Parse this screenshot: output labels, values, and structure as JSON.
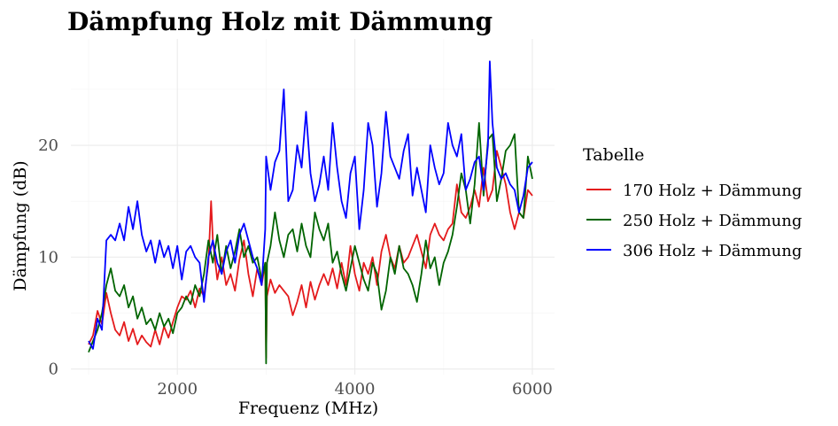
{
  "chart_data": {
    "type": "line",
    "title": "Dämpfung Holz mit Dämmung",
    "xlabel": "Frequenz (MHz)",
    "ylabel": "Dämpfung (dB)",
    "xlim": [
      800,
      6250
    ],
    "ylim": [
      -0.5,
      29.5
    ],
    "x_ticks": [
      2000,
      4000,
      6000
    ],
    "y_ticks": [
      0,
      10,
      20
    ],
    "x_tick_labels": [
      "2000",
      "4000",
      "6000"
    ],
    "y_tick_labels": [
      "0",
      "10",
      "20"
    ],
    "grid": true,
    "legend": {
      "title": "Tabelle",
      "position": "right"
    },
    "series": [
      {
        "name": "170 Holz + Dämmung",
        "color": "#e41a1c",
        "points": [
          [
            1000,
            2.2
          ],
          [
            1050,
            3.0
          ],
          [
            1100,
            5.2
          ],
          [
            1150,
            4.0
          ],
          [
            1200,
            6.8
          ],
          [
            1250,
            5.0
          ],
          [
            1300,
            3.5
          ],
          [
            1350,
            3.0
          ],
          [
            1400,
            4.2
          ],
          [
            1450,
            2.5
          ],
          [
            1500,
            3.6
          ],
          [
            1550,
            2.2
          ],
          [
            1600,
            3.0
          ],
          [
            1650,
            2.4
          ],
          [
            1700,
            2.0
          ],
          [
            1750,
            3.5
          ],
          [
            1800,
            2.2
          ],
          [
            1850,
            3.8
          ],
          [
            1900,
            2.8
          ],
          [
            1950,
            4.2
          ],
          [
            2000,
            5.5
          ],
          [
            2050,
            6.5
          ],
          [
            2100,
            6.2
          ],
          [
            2150,
            7.0
          ],
          [
            2200,
            5.5
          ],
          [
            2250,
            7.2
          ],
          [
            2300,
            6.5
          ],
          [
            2350,
            9.5
          ],
          [
            2380,
            15.0
          ],
          [
            2400,
            11.5
          ],
          [
            2450,
            8.0
          ],
          [
            2500,
            10.0
          ],
          [
            2550,
            7.5
          ],
          [
            2600,
            8.5
          ],
          [
            2650,
            7.0
          ],
          [
            2700,
            9.8
          ],
          [
            2750,
            11.5
          ],
          [
            2800,
            8.5
          ],
          [
            2850,
            6.5
          ],
          [
            2900,
            9.0
          ],
          [
            2950,
            7.5
          ],
          [
            2990,
            9.5
          ],
          [
            3000,
            1.0
          ],
          [
            3010,
            6.5
          ],
          [
            3050,
            8.0
          ],
          [
            3100,
            6.8
          ],
          [
            3150,
            7.5
          ],
          [
            3200,
            7.0
          ],
          [
            3250,
            6.5
          ],
          [
            3300,
            4.8
          ],
          [
            3350,
            6.0
          ],
          [
            3400,
            7.5
          ],
          [
            3450,
            5.5
          ],
          [
            3500,
            7.8
          ],
          [
            3550,
            6.2
          ],
          [
            3600,
            7.5
          ],
          [
            3650,
            8.5
          ],
          [
            3700,
            7.5
          ],
          [
            3750,
            9.0
          ],
          [
            3800,
            7.2
          ],
          [
            3850,
            9.5
          ],
          [
            3900,
            7.5
          ],
          [
            3950,
            11.0
          ],
          [
            4000,
            8.5
          ],
          [
            4050,
            7.0
          ],
          [
            4100,
            9.5
          ],
          [
            4150,
            8.5
          ],
          [
            4200,
            10.0
          ],
          [
            4250,
            7.5
          ],
          [
            4300,
            10.5
          ],
          [
            4350,
            12.0
          ],
          [
            4400,
            10.0
          ],
          [
            4450,
            9.0
          ],
          [
            4500,
            11.0
          ],
          [
            4550,
            9.5
          ],
          [
            4600,
            10.0
          ],
          [
            4650,
            11.0
          ],
          [
            4700,
            12.0
          ],
          [
            4750,
            10.5
          ],
          [
            4800,
            9.0
          ],
          [
            4850,
            12.0
          ],
          [
            4900,
            13.0
          ],
          [
            4950,
            12.0
          ],
          [
            5000,
            11.5
          ],
          [
            5050,
            12.5
          ],
          [
            5100,
            13.0
          ],
          [
            5150,
            16.5
          ],
          [
            5200,
            14.0
          ],
          [
            5250,
            13.5
          ],
          [
            5300,
            14.5
          ],
          [
            5350,
            16.0
          ],
          [
            5400,
            14.5
          ],
          [
            5450,
            18.0
          ],
          [
            5500,
            15.0
          ],
          [
            5550,
            16.0
          ],
          [
            5600,
            19.5
          ],
          [
            5650,
            18.0
          ],
          [
            5700,
            16.5
          ],
          [
            5750,
            14.0
          ],
          [
            5800,
            12.5
          ],
          [
            5850,
            14.0
          ],
          [
            5900,
            13.5
          ],
          [
            5950,
            16.0
          ],
          [
            6000,
            15.5
          ]
        ]
      },
      {
        "name": "250 Holz + Dämmung",
        "color": "#006400",
        "points": [
          [
            1000,
            1.5
          ],
          [
            1050,
            2.5
          ],
          [
            1100,
            3.5
          ],
          [
            1150,
            5.0
          ],
          [
            1200,
            7.5
          ],
          [
            1250,
            9.0
          ],
          [
            1300,
            7.0
          ],
          [
            1350,
            6.5
          ],
          [
            1400,
            7.5
          ],
          [
            1450,
            5.5
          ],
          [
            1500,
            6.5
          ],
          [
            1550,
            4.5
          ],
          [
            1600,
            5.5
          ],
          [
            1650,
            4.0
          ],
          [
            1700,
            4.5
          ],
          [
            1750,
            3.5
          ],
          [
            1800,
            5.0
          ],
          [
            1850,
            3.8
          ],
          [
            1900,
            4.5
          ],
          [
            1950,
            3.2
          ],
          [
            2000,
            5.0
          ],
          [
            2050,
            5.5
          ],
          [
            2100,
            6.5
          ],
          [
            2150,
            5.8
          ],
          [
            2200,
            7.5
          ],
          [
            2250,
            6.5
          ],
          [
            2300,
            8.5
          ],
          [
            2350,
            11.5
          ],
          [
            2400,
            9.5
          ],
          [
            2450,
            12.0
          ],
          [
            2500,
            8.5
          ],
          [
            2550,
            11.0
          ],
          [
            2600,
            9.0
          ],
          [
            2650,
            10.5
          ],
          [
            2700,
            12.5
          ],
          [
            2750,
            10.0
          ],
          [
            2800,
            11.0
          ],
          [
            2850,
            9.5
          ],
          [
            2900,
            10.0
          ],
          [
            2950,
            8.0
          ],
          [
            2990,
            9.5
          ],
          [
            3000,
            0.5
          ],
          [
            3010,
            9.5
          ],
          [
            3050,
            11.0
          ],
          [
            3100,
            14.0
          ],
          [
            3150,
            11.5
          ],
          [
            3200,
            10.0
          ],
          [
            3250,
            12.0
          ],
          [
            3300,
            12.5
          ],
          [
            3350,
            10.5
          ],
          [
            3400,
            13.0
          ],
          [
            3450,
            11.0
          ],
          [
            3500,
            10.0
          ],
          [
            3550,
            14.0
          ],
          [
            3600,
            12.5
          ],
          [
            3650,
            11.5
          ],
          [
            3700,
            13.0
          ],
          [
            3750,
            9.5
          ],
          [
            3800,
            10.5
          ],
          [
            3850,
            8.5
          ],
          [
            3900,
            7.0
          ],
          [
            3950,
            9.0
          ],
          [
            4000,
            11.0
          ],
          [
            4050,
            9.5
          ],
          [
            4100,
            8.0
          ],
          [
            4150,
            7.0
          ],
          [
            4200,
            9.5
          ],
          [
            4250,
            8.5
          ],
          [
            4300,
            5.3
          ],
          [
            4350,
            7.0
          ],
          [
            4400,
            10.0
          ],
          [
            4450,
            8.5
          ],
          [
            4500,
            11.0
          ],
          [
            4550,
            9.0
          ],
          [
            4600,
            8.5
          ],
          [
            4650,
            7.5
          ],
          [
            4700,
            6.0
          ],
          [
            4750,
            8.5
          ],
          [
            4800,
            11.5
          ],
          [
            4850,
            9.0
          ],
          [
            4900,
            10.0
          ],
          [
            4950,
            7.5
          ],
          [
            5000,
            9.5
          ],
          [
            5050,
            10.5
          ],
          [
            5100,
            12.0
          ],
          [
            5150,
            14.5
          ],
          [
            5200,
            17.5
          ],
          [
            5250,
            16.0
          ],
          [
            5300,
            13.0
          ],
          [
            5350,
            16.5
          ],
          [
            5400,
            22.0
          ],
          [
            5450,
            15.5
          ],
          [
            5500,
            20.5
          ],
          [
            5550,
            21.0
          ],
          [
            5600,
            15.0
          ],
          [
            5650,
            17.0
          ],
          [
            5700,
            19.5
          ],
          [
            5750,
            20.0
          ],
          [
            5800,
            21.0
          ],
          [
            5850,
            14.0
          ],
          [
            5900,
            13.5
          ],
          [
            5950,
            19.0
          ],
          [
            6000,
            17.0
          ]
        ]
      },
      {
        "name": "306 Holz + Dämmung",
        "color": "#0000ff",
        "points": [
          [
            1000,
            2.5
          ],
          [
            1050,
            1.8
          ],
          [
            1100,
            4.5
          ],
          [
            1150,
            3.5
          ],
          [
            1200,
            11.5
          ],
          [
            1250,
            12.0
          ],
          [
            1300,
            11.5
          ],
          [
            1350,
            13.0
          ],
          [
            1400,
            11.5
          ],
          [
            1450,
            14.5
          ],
          [
            1500,
            12.5
          ],
          [
            1550,
            15.0
          ],
          [
            1600,
            12.0
          ],
          [
            1650,
            10.5
          ],
          [
            1700,
            11.5
          ],
          [
            1750,
            9.5
          ],
          [
            1800,
            11.5
          ],
          [
            1850,
            10.0
          ],
          [
            1900,
            11.0
          ],
          [
            1950,
            9.0
          ],
          [
            2000,
            11.0
          ],
          [
            2050,
            8.0
          ],
          [
            2100,
            10.5
          ],
          [
            2150,
            11.0
          ],
          [
            2200,
            10.0
          ],
          [
            2250,
            9.5
          ],
          [
            2300,
            6.0
          ],
          [
            2350,
            10.0
          ],
          [
            2400,
            11.5
          ],
          [
            2450,
            9.5
          ],
          [
            2500,
            8.5
          ],
          [
            2550,
            10.5
          ],
          [
            2600,
            11.5
          ],
          [
            2650,
            9.5
          ],
          [
            2700,
            12.0
          ],
          [
            2750,
            13.0
          ],
          [
            2800,
            11.5
          ],
          [
            2850,
            10.0
          ],
          [
            2900,
            9.0
          ],
          [
            2950,
            7.5
          ],
          [
            2990,
            12.5
          ],
          [
            3000,
            19.0
          ],
          [
            3050,
            16.0
          ],
          [
            3100,
            18.5
          ],
          [
            3150,
            19.5
          ],
          [
            3200,
            25.0
          ],
          [
            3250,
            15.0
          ],
          [
            3300,
            16.0
          ],
          [
            3350,
            20.0
          ],
          [
            3400,
            18.0
          ],
          [
            3450,
            23.0
          ],
          [
            3500,
            17.5
          ],
          [
            3550,
            15.0
          ],
          [
            3600,
            16.5
          ],
          [
            3650,
            19.0
          ],
          [
            3700,
            16.0
          ],
          [
            3750,
            22.0
          ],
          [
            3800,
            18.0
          ],
          [
            3850,
            15.0
          ],
          [
            3900,
            13.5
          ],
          [
            3950,
            17.5
          ],
          [
            4000,
            19.0
          ],
          [
            4050,
            12.5
          ],
          [
            4100,
            16.0
          ],
          [
            4150,
            22.0
          ],
          [
            4200,
            20.0
          ],
          [
            4250,
            14.5
          ],
          [
            4300,
            17.5
          ],
          [
            4350,
            23.0
          ],
          [
            4400,
            19.0
          ],
          [
            4450,
            18.0
          ],
          [
            4500,
            17.0
          ],
          [
            4550,
            19.5
          ],
          [
            4600,
            21.0
          ],
          [
            4650,
            15.5
          ],
          [
            4700,
            18.0
          ],
          [
            4750,
            16.0
          ],
          [
            4800,
            14.0
          ],
          [
            4850,
            20.0
          ],
          [
            4900,
            18.0
          ],
          [
            4950,
            16.5
          ],
          [
            5000,
            17.5
          ],
          [
            5050,
            22.0
          ],
          [
            5100,
            20.0
          ],
          [
            5150,
            19.0
          ],
          [
            5200,
            21.0
          ],
          [
            5250,
            16.0
          ],
          [
            5300,
            17.0
          ],
          [
            5350,
            18.5
          ],
          [
            5400,
            19.0
          ],
          [
            5450,
            16.0
          ],
          [
            5500,
            20.0
          ],
          [
            5520,
            27.5
          ],
          [
            5550,
            22.0
          ],
          [
            5600,
            18.0
          ],
          [
            5650,
            17.0
          ],
          [
            5700,
            17.5
          ],
          [
            5750,
            16.5
          ],
          [
            5800,
            16.0
          ],
          [
            5850,
            14.0
          ],
          [
            5900,
            15.5
          ],
          [
            5950,
            18.0
          ],
          [
            6000,
            18.5
          ]
        ]
      }
    ]
  }
}
